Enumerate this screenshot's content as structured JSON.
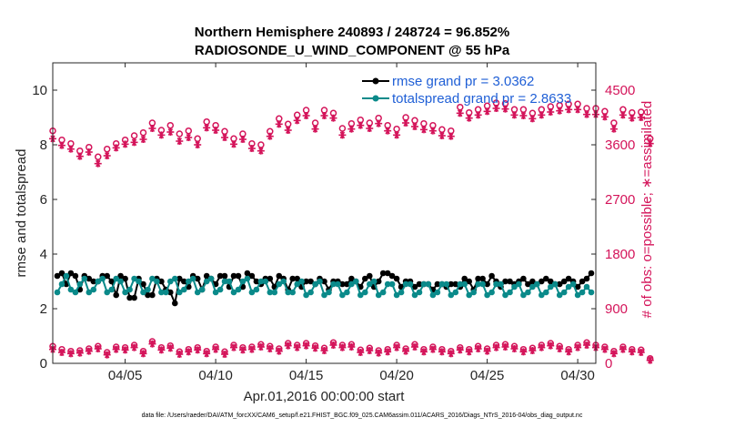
{
  "chart_data": {
    "type": "line",
    "title": "Northern Hemisphere 240893 / 248724 = 96.852%",
    "subtitle": "RADIOSONDE_U_WIND_COMPONENT @ 55 hPa",
    "xlabel": "Apr.01,2016 00:00:00 start",
    "ylabel": "rmse and totalspread",
    "ylabel_right": "# of obs: o=possible; ∗=assimilated",
    "footer": "data file: /Users/raeder/DAI/ATM_forcXX/CAM6_setup/f.e21.FHIST_BGC.f09_025.CAM6assim.011/ACARS_2016/Diags_NTrS_2016-04/obs_diag_output.nc",
    "xlim": [
      1,
      31
    ],
    "ylim": [
      0,
      11
    ],
    "ylim_right": [
      0,
      4950
    ],
    "xticks": [
      5,
      10,
      15,
      20,
      25,
      30
    ],
    "xtick_labels": [
      "04/05",
      "04/10",
      "04/15",
      "04/20",
      "04/25",
      "04/30"
    ],
    "yticks": [
      0,
      2,
      4,
      6,
      8,
      10
    ],
    "ytick_labels": [
      "0",
      "2",
      "4",
      "6",
      "8",
      "10"
    ],
    "yticks_right": [
      0,
      900,
      1800,
      2700,
      3600,
      4500
    ],
    "ytick_labels_right": [
      "0",
      "900",
      "1800",
      "2700",
      "3600",
      "4500"
    ],
    "legend_position": "top-right",
    "colors": {
      "rmse": "#000000",
      "spread": "#0a8a8a",
      "obs": "#d4145a",
      "axis": "#262626"
    },
    "series": [
      {
        "name": "rmse grand pr = 3.0362",
        "key": "rmse",
        "x_start": 1.25,
        "x_step": 0.25,
        "values": [
          3.2,
          3.3,
          2.9,
          3.3,
          3.2,
          2.7,
          3.2,
          3.1,
          3.0,
          3.0,
          3.2,
          3.2,
          3.0,
          2.5,
          3.2,
          3.1,
          2.4,
          2.4,
          3.1,
          2.9,
          2.5,
          2.5,
          3.1,
          3.0,
          2.7,
          2.6,
          2.2,
          3.1,
          3.0,
          2.8,
          3.2,
          3.1,
          2.7,
          3.2,
          3.1,
          2.9,
          3.2,
          3.2,
          2.8,
          3.2,
          3.2,
          2.8,
          3.3,
          3.2,
          3.0,
          2.9,
          3.1,
          3.1,
          2.8,
          3.2,
          3.1,
          2.7,
          3.1,
          3.1,
          2.8,
          3.0,
          3.0,
          2.9,
          3.1,
          3.0,
          2.7,
          3.0,
          3.0,
          2.9,
          2.9,
          3.1,
          3.0,
          2.8,
          3.1,
          3.2,
          2.8,
          3.0,
          3.3,
          3.3,
          3.2,
          3.1,
          2.8,
          3.0,
          3.0,
          2.8,
          2.9,
          2.9,
          2.9,
          2.7,
          2.9,
          2.9,
          2.8,
          2.9,
          2.9,
          2.8,
          3.1,
          3.0,
          2.7,
          3.1,
          3.1,
          2.9,
          3.2,
          3.0,
          2.8,
          3.0,
          3.0,
          2.9,
          3.0,
          3.1,
          2.9,
          3.0,
          2.9,
          3.0,
          3.1,
          3.0,
          2.9,
          2.9,
          3.0,
          3.1,
          3.0,
          2.8,
          3.0,
          3.1,
          3.3
        ]
      },
      {
        "name": "totalspread grand pr = 2.8633",
        "key": "spread",
        "x_start": 1.25,
        "x_step": 0.25,
        "values": [
          2.6,
          2.9,
          3.2,
          2.7,
          2.6,
          2.9,
          3.1,
          2.6,
          2.7,
          3.0,
          3.1,
          2.6,
          2.7,
          3.1,
          3.0,
          2.6,
          2.7,
          3.1,
          3.0,
          2.6,
          2.7,
          3.1,
          3.0,
          2.6,
          2.6,
          3.0,
          3.1,
          2.6,
          2.7,
          3.0,
          3.1,
          2.6,
          2.7,
          3.0,
          3.1,
          2.6,
          2.7,
          3.0,
          3.0,
          2.6,
          2.7,
          3.0,
          3.1,
          2.6,
          2.7,
          3.0,
          3.0,
          2.6,
          2.6,
          2.9,
          3.0,
          2.6,
          2.6,
          2.9,
          3.0,
          2.5,
          2.6,
          2.9,
          3.0,
          2.5,
          2.6,
          2.9,
          2.9,
          2.5,
          2.6,
          2.9,
          3.0,
          2.5,
          2.6,
          2.9,
          3.0,
          2.5,
          2.6,
          2.9,
          2.9,
          2.5,
          2.6,
          2.9,
          2.9,
          2.5,
          2.6,
          2.9,
          2.9,
          2.5,
          2.6,
          2.9,
          2.9,
          2.5,
          2.6,
          2.9,
          2.9,
          2.5,
          2.6,
          2.9,
          2.9,
          2.5,
          2.6,
          2.9,
          2.9,
          2.5,
          2.6,
          2.8,
          2.9,
          2.5,
          2.6,
          2.8,
          2.9,
          2.5,
          2.6,
          2.8,
          2.9,
          2.5,
          2.6,
          2.8,
          2.9,
          2.5,
          2.6,
          2.8,
          2.6
        ]
      },
      {
        "name": "obs possible",
        "key": "obs_possible",
        "marker": "o",
        "x_start": 1,
        "x_step": 0.5,
        "values": [
          3830,
          3680,
          3620,
          3500,
          3560,
          3400,
          3530,
          3620,
          3680,
          3750,
          3800,
          3960,
          3840,
          3920,
          3780,
          3830,
          3700,
          3980,
          3920,
          3820,
          3700,
          3780,
          3620,
          3600,
          3820,
          4030,
          3940,
          4090,
          4170,
          3960,
          4170,
          4120,
          3870,
          3950,
          4010,
          3960,
          4040,
          3920,
          3860,
          4050,
          4000,
          3950,
          3920,
          3850,
          3830,
          4220,
          4130,
          4180,
          4240,
          4290,
          4280,
          4180,
          4180,
          4120,
          4180,
          4230,
          4250,
          4270,
          4270,
          4200,
          4200,
          4150,
          3960,
          4180,
          4130,
          4140,
          3700
        ]
      },
      {
        "name": "obs assimilated",
        "key": "obs_assimilated",
        "marker": "*",
        "x_start": 1,
        "x_step": 0.5,
        "values": [
          3700,
          3590,
          3530,
          3410,
          3480,
          3290,
          3420,
          3550,
          3610,
          3640,
          3690,
          3870,
          3760,
          3810,
          3660,
          3720,
          3600,
          3880,
          3840,
          3720,
          3610,
          3690,
          3540,
          3500,
          3740,
          3940,
          3840,
          4000,
          4080,
          3860,
          4080,
          4040,
          3760,
          3860,
          3920,
          3870,
          3950,
          3830,
          3760,
          3960,
          3900,
          3850,
          3830,
          3750,
          3740,
          4120,
          4040,
          4090,
          4150,
          4200,
          4190,
          4090,
          4080,
          4030,
          4090,
          4140,
          4160,
          4180,
          4180,
          4100,
          4100,
          4060,
          3860,
          4090,
          4040,
          4050,
          3620
        ]
      },
      {
        "name": "obs possible (low)",
        "key": "obs_low_possible",
        "marker": "o",
        "x_start": 1,
        "x_step": 0.5,
        "values": [
          280,
          230,
          200,
          210,
          240,
          280,
          180,
          270,
          260,
          300,
          200,
          360,
          260,
          290,
          190,
          230,
          260,
          200,
          270,
          190,
          300,
          260,
          270,
          310,
          280,
          240,
          330,
          300,
          330,
          290,
          250,
          340,
          300,
          310,
          220,
          250,
          210,
          230,
          300,
          240,
          310,
          230,
          270,
          230,
          200,
          260,
          230,
          280,
          240,
          300,
          310,
          280,
          230,
          250,
          300,
          330,
          280,
          230,
          300,
          340,
          300,
          270,
          200,
          270,
          230,
          220,
          80
        ]
      },
      {
        "name": "obs assimilated (low)",
        "key": "obs_low_assimilated",
        "marker": "*",
        "x_start": 1,
        "x_step": 0.5,
        "values": [
          230,
          180,
          160,
          170,
          200,
          240,
          140,
          230,
          220,
          260,
          160,
          320,
          220,
          250,
          150,
          190,
          220,
          160,
          230,
          150,
          260,
          220,
          230,
          270,
          240,
          200,
          290,
          260,
          290,
          250,
          210,
          300,
          260,
          270,
          180,
          210,
          170,
          190,
          260,
          200,
          270,
          190,
          230,
          190,
          160,
          220,
          190,
          240,
          200,
          260,
          270,
          240,
          190,
          210,
          260,
          290,
          240,
          190,
          260,
          300,
          260,
          230,
          160,
          230,
          190,
          180,
          50
        ]
      }
    ]
  }
}
